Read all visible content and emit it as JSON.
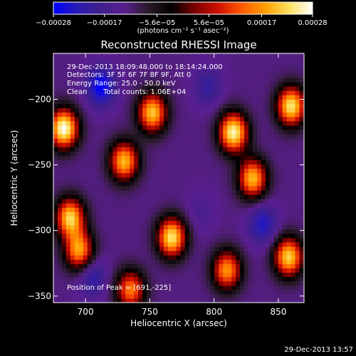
{
  "chart_data": {
    "type": "heatmap",
    "title": "Reconstructed RHESSI Image",
    "xlabel": "Heliocentric X (arcsec)",
    "ylabel": "Heliocentric Y (arcsec)",
    "xlim": [
      675,
      870
    ],
    "ylim": [
      -355,
      -165
    ],
    "x_ticks": [
      700,
      750,
      800,
      850
    ],
    "x_tick_labels": [
      "700",
      "750",
      "800",
      "850"
    ],
    "y_ticks": [
      -200,
      -250,
      -300,
      -350
    ],
    "y_tick_labels": [
      "−200",
      "−250",
      "−300",
      "−350"
    ],
    "grid": false,
    "colorbar": {
      "min": -0.00028,
      "max": 0.00028,
      "ticks": [
        -0.00028,
        -0.00017,
        -5.6e-05,
        5.6e-05,
        0.00017,
        0.00028
      ],
      "tick_labels": [
        "−0.00028",
        "−0.00017",
        "−5.6e−05",
        "5.6e−05",
        "0.00017",
        "0.00028"
      ],
      "unit_label": "(photons cm⁻² s⁻¹ asec⁻²)",
      "colors": [
        "#0000ff",
        "#2a1bb4",
        "#3f1f8e",
        "#5a1f8f",
        "#2a1a2a",
        "#000000",
        "#7a0000",
        "#d01000",
        "#ff5a00",
        "#ffa000",
        "#ffe060",
        "#ffffff"
      ]
    },
    "peak_blobs": [
      {
        "x": 683,
        "y": -222,
        "value": 0.00028
      },
      {
        "x": 688,
        "y": -290,
        "value": 0.00022
      },
      {
        "x": 695,
        "y": -315,
        "value": 0.00018
      },
      {
        "x": 730,
        "y": -247,
        "value": 0.0002
      },
      {
        "x": 767,
        "y": -305,
        "value": 0.00024
      },
      {
        "x": 752,
        "y": -210,
        "value": 0.00021
      },
      {
        "x": 815,
        "y": -225,
        "value": 0.00026
      },
      {
        "x": 830,
        "y": -260,
        "value": 0.0002
      },
      {
        "x": 860,
        "y": -205,
        "value": 0.00024
      },
      {
        "x": 858,
        "y": -320,
        "value": 0.00022
      },
      {
        "x": 810,
        "y": -330,
        "value": 0.00017
      },
      {
        "x": 735,
        "y": -345,
        "value": 0.00015
      }
    ],
    "trough_blobs": [
      {
        "x": 712,
        "y": -190,
        "value": -0.00028
      },
      {
        "x": 795,
        "y": -190,
        "value": -0.0002
      },
      {
        "x": 838,
        "y": -295,
        "value": -0.00024
      },
      {
        "x": 705,
        "y": -335,
        "value": -0.00022
      },
      {
        "x": 790,
        "y": -285,
        "value": -0.00016
      }
    ]
  },
  "overlay": {
    "line1": "29-Dec-2013 18:09:48.000 to 18:14:24.000",
    "line2": "Detectors: 3F 5F 6F 7F 8F 9F, Att 0",
    "line3": "Energy Range: 25.0 - 50.0 keV",
    "line4_left": "Clean",
    "line4_right": "Total counts: 1.06E+04",
    "peak": "Position of Peak = [691,-225]"
  },
  "footer": {
    "timestamp": "29-Dec-2013 13:57"
  }
}
